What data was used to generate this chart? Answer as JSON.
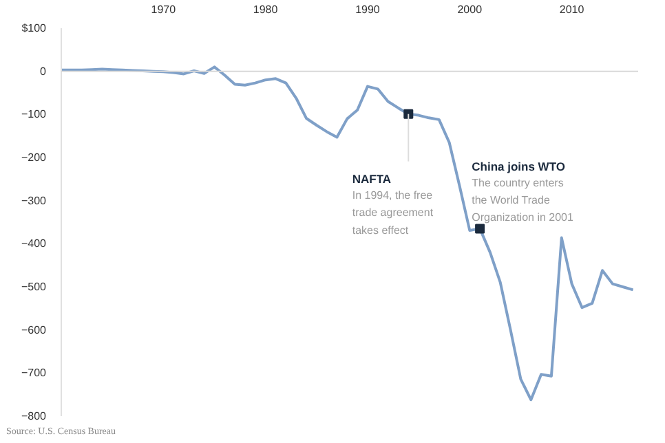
{
  "chart_data": {
    "type": "line",
    "x": [
      1960,
      1961,
      1962,
      1963,
      1964,
      1965,
      1966,
      1967,
      1968,
      1969,
      1970,
      1971,
      1972,
      1973,
      1974,
      1975,
      1976,
      1977,
      1978,
      1979,
      1980,
      1981,
      1982,
      1983,
      1984,
      1985,
      1986,
      1987,
      1988,
      1989,
      1990,
      1991,
      1992,
      1993,
      1994,
      1995,
      1996,
      1997,
      1998,
      1999,
      2000,
      2001,
      2002,
      2003,
      2004,
      2005,
      2006,
      2007,
      2008,
      2009,
      2010,
      2011,
      2012,
      2013,
      2014,
      2015,
      2016
    ],
    "series": [
      {
        "color": "#7fa0c8",
        "values": [
          3,
          3,
          3,
          4,
          5,
          4,
          3,
          2,
          1,
          0,
          -1,
          -3,
          -6,
          1,
          -5,
          10,
          -9,
          -30,
          -32,
          -27,
          -20,
          -17,
          -27,
          -62,
          -109,
          -125,
          -140,
          -153,
          -110,
          -90,
          -35,
          -41,
          -70,
          -85,
          -99,
          -102,
          -108,
          -112,
          -165,
          -265,
          -369,
          -365,
          -420,
          -490,
          -600,
          -714,
          -762,
          -703,
          -707,
          -386,
          -493,
          -548,
          -538,
          -462,
          -493,
          -500,
          -507
        ]
      }
    ],
    "xlim": [
      1960,
      2016.5
    ],
    "ylim": [
      -800,
      100
    ],
    "xticks": [
      1970,
      1980,
      1990,
      2000,
      2010
    ],
    "yticks": [
      {
        "value": 100,
        "label": "$100"
      },
      0,
      -100,
      -200,
      -300,
      -400,
      -500,
      -600,
      -700,
      -800
    ],
    "ref_lines": [
      {
        "axis": "y",
        "value": 0,
        "color": "#d8d8d8"
      }
    ],
    "marker": "none",
    "line_style": "solid",
    "grid": false,
    "annotations": [
      {
        "text": "NAFTA\nIn 1994, the free\ntrade agreement\ntakes effect",
        "x": 1994,
        "y": -99
      },
      {
        "text": "China joins WTO\nThe country enters\nthe World Trade\nOrganization in 2001",
        "x": 2001,
        "y": -365
      },
      "Source: U.S. Census Bureau"
    ]
  }
}
